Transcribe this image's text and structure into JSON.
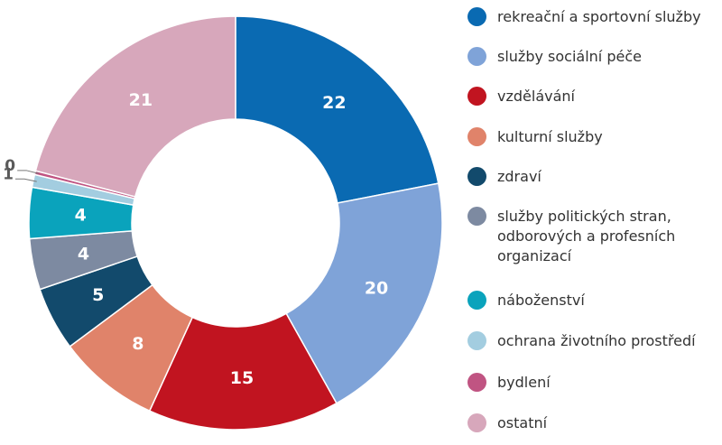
{
  "chart_data": {
    "type": "pie",
    "variant": "donut",
    "categories": [
      "rekreační a sportovní služby",
      "služby sociální péče",
      "vzdělávání",
      "kulturní služby",
      "zdraví",
      "služby politických stran,\nodborových a profesních\norganizací",
      "náboženství",
      "ochrana životního prostředí",
      "bydlení",
      "ostatní"
    ],
    "values": [
      22,
      20,
      15,
      8,
      5,
      4,
      4,
      1,
      0.3,
      21
    ],
    "data_labels": [
      "22",
      "20",
      "15",
      "8",
      "5",
      "4",
      "4",
      "1",
      "0",
      "21"
    ],
    "colors": [
      "#0a6ab2",
      "#7fa3d8",
      "#c11420",
      "#e0836a",
      "#124a6c",
      "#7d8aa1",
      "#0aa3bc",
      "#a3cde0",
      "#c05482",
      "#d7a7bb"
    ],
    "legend_position": "right",
    "title": ""
  }
}
